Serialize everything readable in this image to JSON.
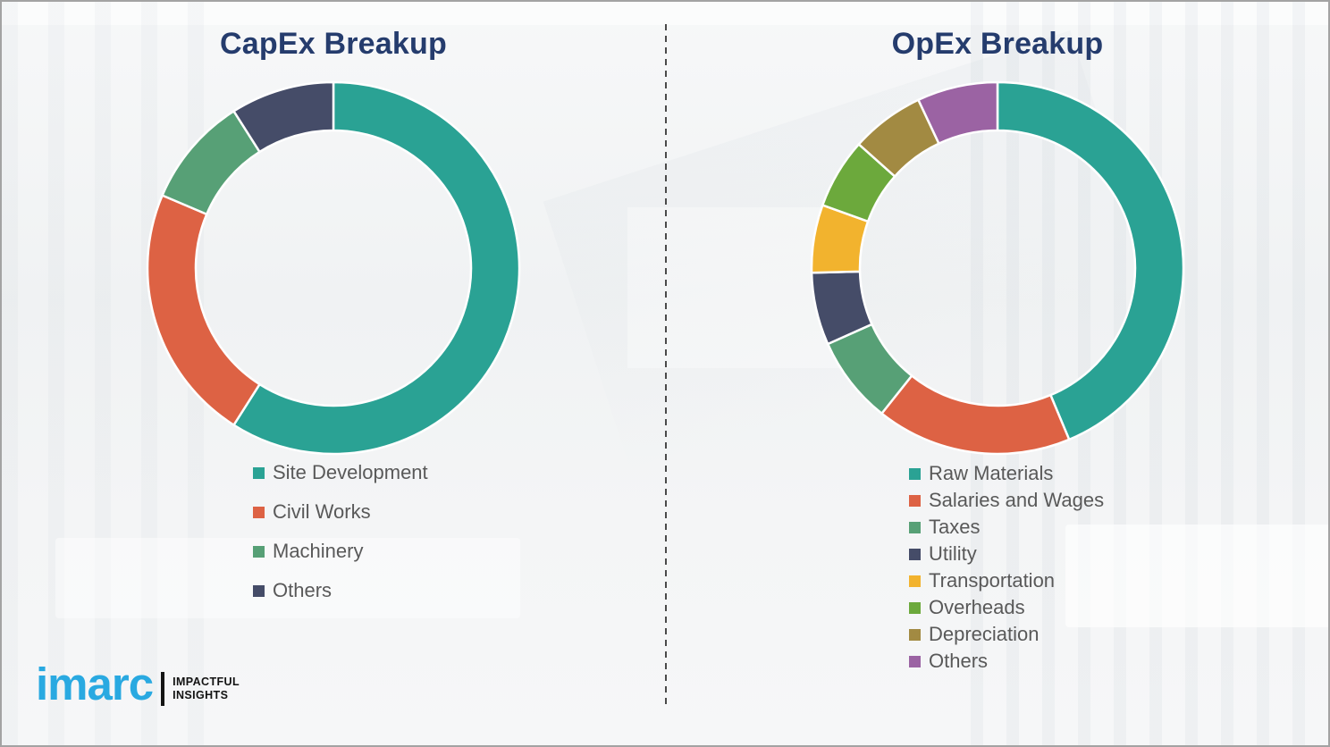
{
  "frame": {
    "border_color": "#a3a3a3",
    "background_color": "#f4f5f6",
    "divider_style": "vertical dashed line",
    "divider_color": "#4a4a4a"
  },
  "chart_data": [
    {
      "type": "donut",
      "title": "CapEx Breakup",
      "categories": [
        "Site Development",
        "Civil Works",
        "Machinery",
        "Others"
      ],
      "values_pct": [
        59,
        22.4,
        9.6,
        9
      ],
      "colors": [
        "#2aa294",
        "#dd6244",
        "#57a076",
        "#454c68"
      ],
      "start_angle_deg": 0,
      "direction": "clockwise",
      "inner_radius_ratio": 0.74,
      "data_labels": "none",
      "legend_position": "below-left",
      "title_color": "#253c6d",
      "legend_text_color": "#595959"
    },
    {
      "type": "donut",
      "title": "OpEx Breakup",
      "categories": [
        "Raw Materials",
        "Salaries and Wages",
        "Taxes",
        "Utility",
        "Transportation",
        "Overheads",
        "Depreciation",
        "Others"
      ],
      "values_pct": [
        43.7,
        17,
        7.6,
        6.3,
        5.9,
        6.1,
        6.4,
        7
      ],
      "colors": [
        "#2aa294",
        "#dd6244",
        "#57a076",
        "#454c68",
        "#f2b32e",
        "#6ca93c",
        "#a28a42",
        "#9b63a3"
      ],
      "start_angle_deg": 0,
      "direction": "clockwise",
      "inner_radius_ratio": 0.74,
      "data_labels": "none",
      "legend_position": "below-left",
      "title_color": "#253c6d",
      "legend_text_color": "#595959"
    }
  ],
  "logo": {
    "brand": "imarc",
    "brand_color": "#29a9e1",
    "tagline_line1": "IMPACTFUL",
    "tagline_line2": "INSIGHTS"
  }
}
